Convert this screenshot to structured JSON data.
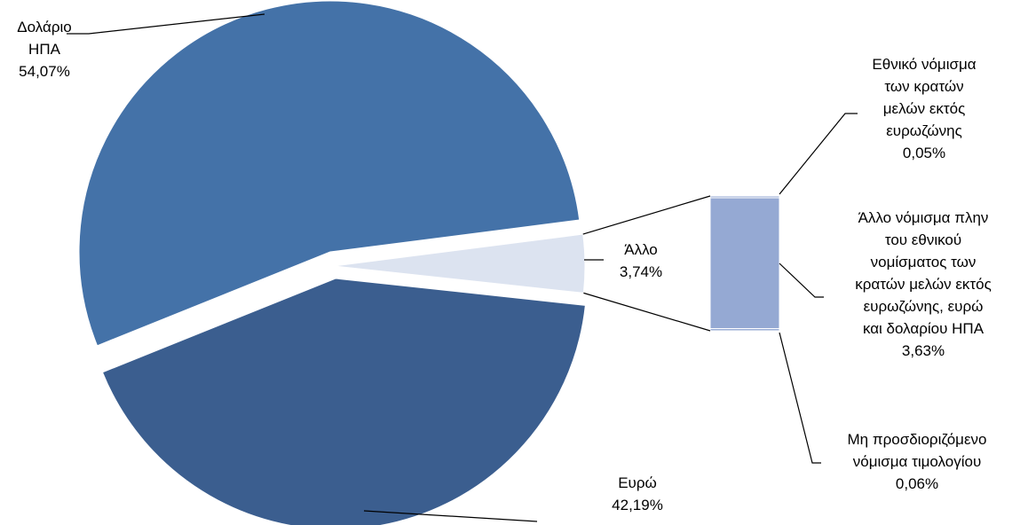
{
  "chart_data": {
    "type": "pie",
    "slices": [
      {
        "label_lines": [
          "Δολάριο",
          "ΗΠΑ"
        ],
        "value_label": "54,07%",
        "value": 54.07,
        "color": "#4472A8"
      },
      {
        "label_lines": [
          "Άλλο"
        ],
        "value_label": "3,74%",
        "value": 3.74,
        "color": "#DCE3F0"
      },
      {
        "label_lines": [
          "Ευρώ"
        ],
        "value_label": "42,19%",
        "value": 42.19,
        "color": "#3B5E8F"
      }
    ],
    "breakdown": {
      "parent": "Άλλο",
      "bar_color": "#95A9D3",
      "items": [
        {
          "label_lines": [
            "Εθνικό νόμισμα",
            "των κρατών",
            "μελών εκτός",
            "ευρωζώνης"
          ],
          "value_label": "0,05%",
          "value": 0.05
        },
        {
          "label_lines": [
            "Άλλο νόμισμα πλην",
            "του εθνικού",
            "νομίσματος των",
            "κρατών μελών εκτός",
            "ευρωζώνης, ευρώ",
            "και δολαρίου ΗΠΑ"
          ],
          "value_label": "3,63%",
          "value": 3.63
        },
        {
          "label_lines": [
            "Μη προσδιοριζόμενο",
            "νόμισμα τιμολογίου"
          ],
          "value_label": "0,06%",
          "value": 0.06
        }
      ]
    }
  }
}
